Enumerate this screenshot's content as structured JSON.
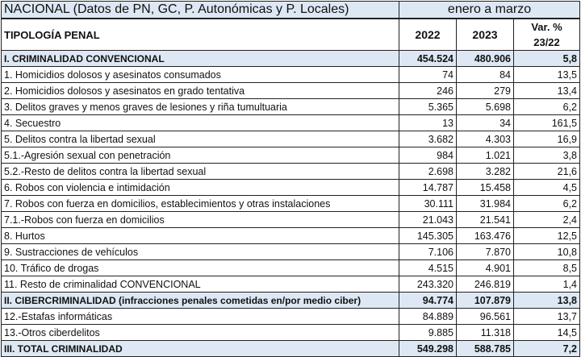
{
  "title": "NACIONAL (Datos de PN, GC, P. Autonómicas y P. Locales)",
  "period": "enero a marzo",
  "headers": {
    "typology": "TIPOLOGÍA PENAL",
    "y1": "2022",
    "y2": "2023",
    "var_line1": "Var. %",
    "var_line2": "23/22"
  },
  "colors": {
    "section_bg": "#dde8f4"
  },
  "rows": [
    {
      "label": "I. CRIMINALIDAD CONVENCIONAL",
      "y2022": "454.524",
      "y2023": "480.906",
      "var": "5,8",
      "section": true
    },
    {
      "label": "1. Homicidios dolosos y asesinatos consumados",
      "y2022": "74",
      "y2023": "84",
      "var": "13,5"
    },
    {
      "label": "2. Homicidios dolosos y asesinatos en grado tentativa",
      "y2022": "246",
      "y2023": "279",
      "var": "13,4"
    },
    {
      "label": "3. Delitos graves y menos graves de lesiones y riña tumultuaria",
      "y2022": "5.365",
      "y2023": "5.698",
      "var": "6,2"
    },
    {
      "label": "4. Secuestro",
      "y2022": "13",
      "y2023": "34",
      "var": "161,5"
    },
    {
      "label": "5. Delitos contra la libertad sexual",
      "y2022": "3.682",
      "y2023": "4.303",
      "var": "16,9"
    },
    {
      "label": "5.1.-Agresión sexual con penetración",
      "y2022": "984",
      "y2023": "1.021",
      "var": "3,8"
    },
    {
      "label": "5.2.-Resto de delitos contra la libertad sexual",
      "y2022": "2.698",
      "y2023": "3.282",
      "var": "21,6"
    },
    {
      "label": "6. Robos con violencia e intimidación",
      "y2022": "14.787",
      "y2023": "15.458",
      "var": "4,5"
    },
    {
      "label": "7. Robos con fuerza en domicilios, establecimientos y otras instalaciones",
      "y2022": "30.111",
      "y2023": "31.984",
      "var": "6,2"
    },
    {
      "label": "7.1.-Robos con fuerza en domicilios",
      "y2022": "21.043",
      "y2023": "21.541",
      "var": "2,4"
    },
    {
      "label": "8. Hurtos",
      "y2022": "145.305",
      "y2023": "163.476",
      "var": "12,5"
    },
    {
      "label": "9. Sustracciones de vehículos",
      "y2022": "7.106",
      "y2023": "7.870",
      "var": "10,8"
    },
    {
      "label": "10. Tráfico de drogas",
      "y2022": "4.515",
      "y2023": "4.901",
      "var": "8,5"
    },
    {
      "label": "11. Resto de criminalidad CONVENCIONAL",
      "y2022": "243.320",
      "y2023": "246.819",
      "var": "1,4"
    },
    {
      "label": "II. CIBERCRIMINALIDAD (infracciones penales cometidas en/por medio ciber)",
      "y2022": "94.774",
      "y2023": "107.879",
      "var": "13,8",
      "section": true
    },
    {
      "label": "12.-Estafas informáticas",
      "y2022": "84.889",
      "y2023": "96.561",
      "var": "13,7"
    },
    {
      "label": "13.-Otros ciberdelitos",
      "y2022": "9.885",
      "y2023": "11.318",
      "var": "14,5"
    },
    {
      "label": "III. TOTAL CRIMINALIDAD",
      "y2022": "549.298",
      "y2023": "588.785",
      "var": "7,2",
      "section": true
    }
  ]
}
